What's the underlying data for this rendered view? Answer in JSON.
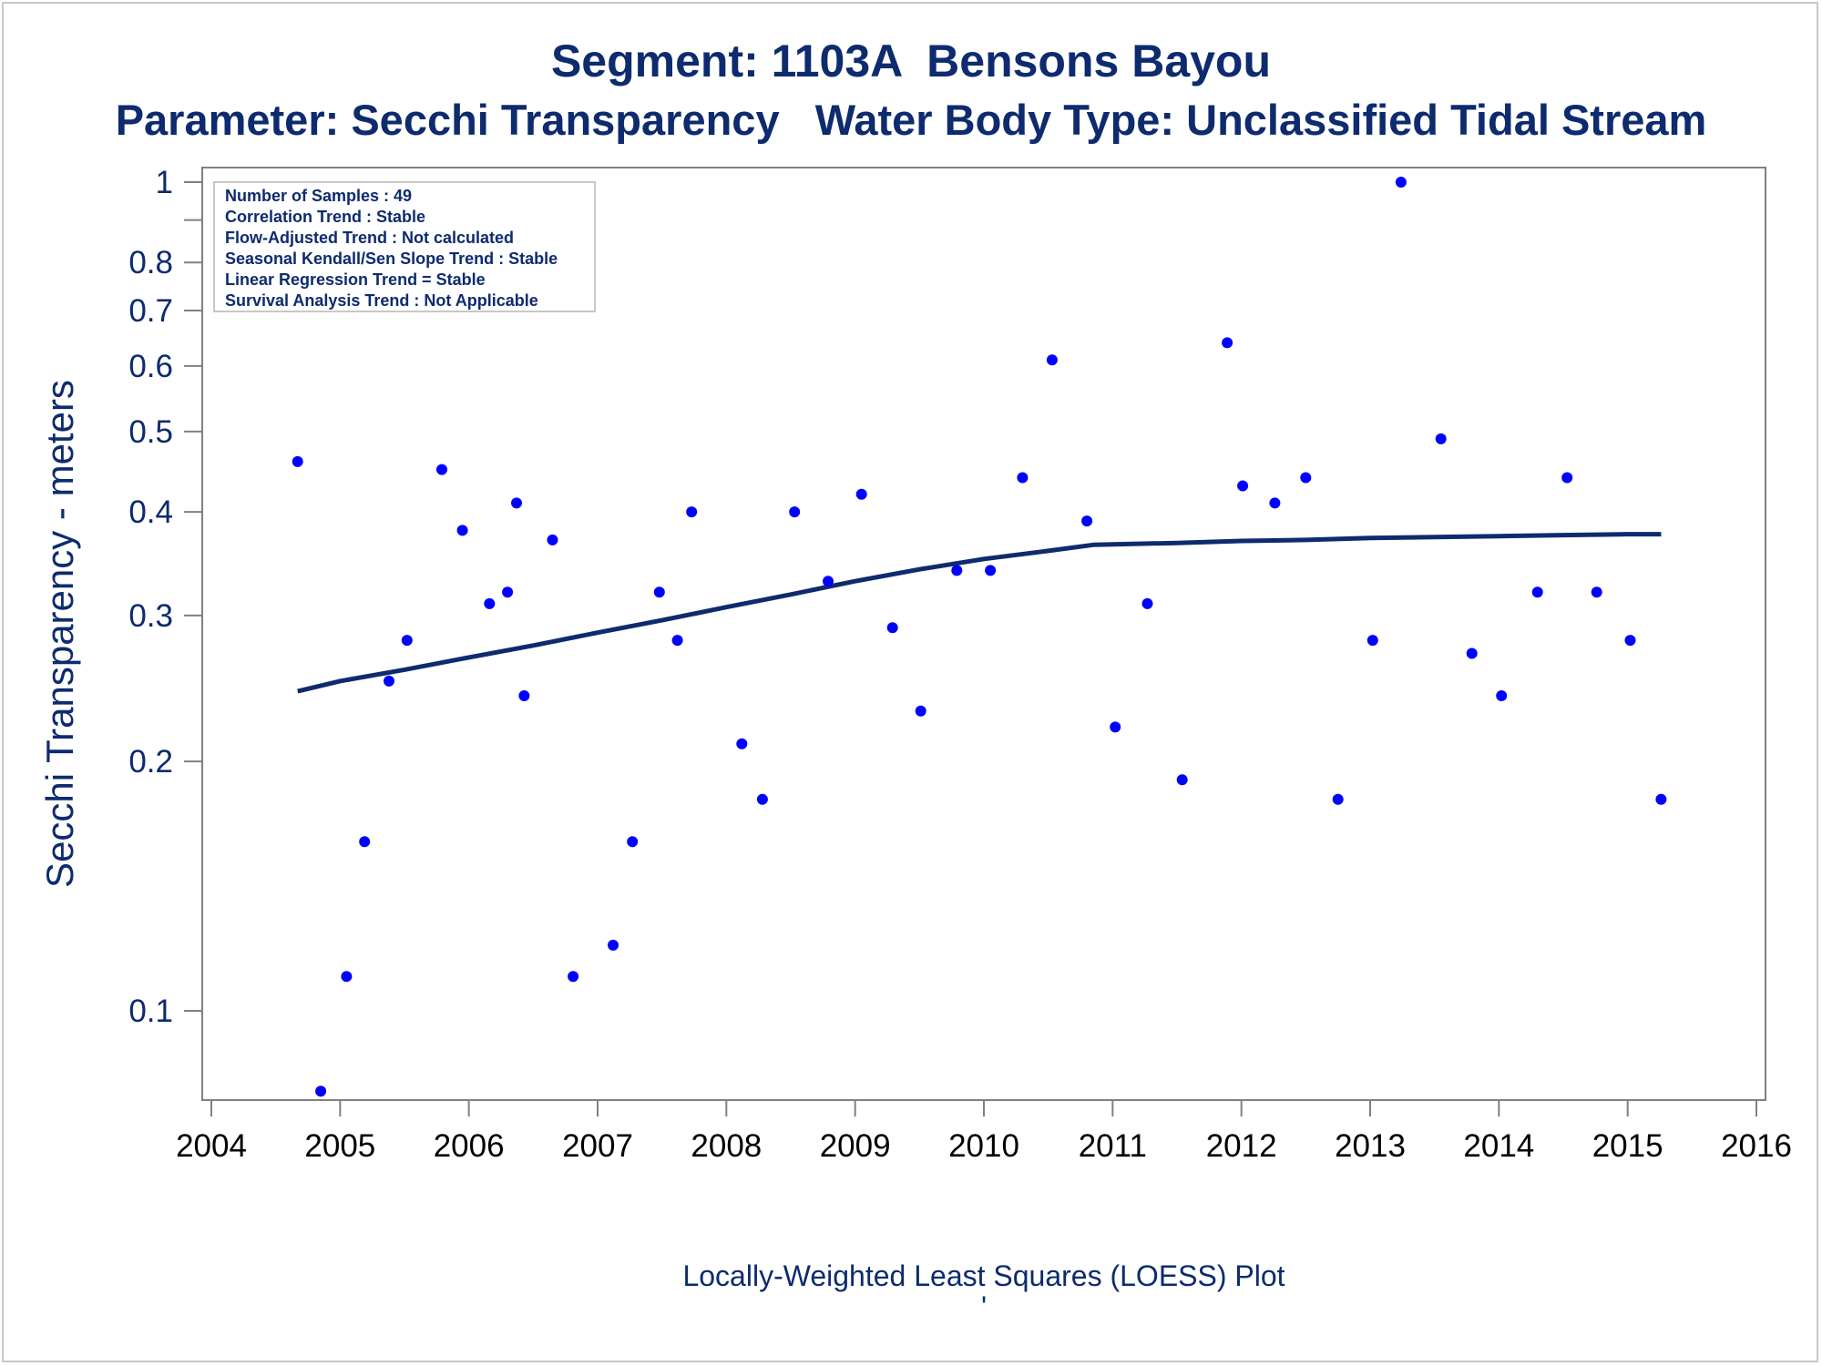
{
  "chart_data": {
    "type": "scatter",
    "title": "Segment: 1103A  Bensons Bayou",
    "subtitle": "Parameter: Secchi Transparency   Water Body Type: Unclassified Tidal Stream",
    "xlabel": "",
    "ylabel": "Secchi Transparency - meters",
    "footnote": "Locally-Weighted Least Squares (LOESS) Plot",
    "footnote_mark": "'",
    "yscale": "log",
    "xlim": [
      2004,
      2016
    ],
    "ylim": [
      0.075,
      1.05
    ],
    "x_ticks": [
      "2004",
      "2005",
      "2006",
      "2007",
      "2008",
      "2009",
      "2010",
      "2011",
      "2012",
      "2013",
      "2014",
      "2015",
      "2016"
    ],
    "y_ticks": [
      {
        "value": 1.0,
        "label": "1"
      },
      {
        "value": 0.8,
        "label": "0.8"
      },
      {
        "value": 0.7,
        "label": "0.7"
      },
      {
        "value": 0.6,
        "label": "0.6"
      },
      {
        "value": 0.5,
        "label": "0.5"
      },
      {
        "value": 0.4,
        "label": "0.4"
      },
      {
        "value": 0.3,
        "label": "0.3"
      },
      {
        "value": 0.2,
        "label": "0.2"
      },
      {
        "value": 0.1,
        "label": "0.1"
      }
    ],
    "y_minor_ticks": [
      0.9
    ],
    "grid": false,
    "legend_position": "top-left",
    "info_box": [
      "Number of Samples : 49",
      "Correlation Trend : Stable",
      "Flow-Adjusted Trend : Not calculated",
      "Seasonal Kendall/Sen Slope Trend : Stable",
      "Linear Regression Trend = Stable",
      "Survival Analysis Trend : Not Applicable"
    ],
    "colors": {
      "points": "#0000ff",
      "line": "#0d2b6e",
      "text": "#0d2b6e",
      "axis": "#808080"
    },
    "points": [
      {
        "x": 2004.67,
        "y": 0.46
      },
      {
        "x": 2004.85,
        "y": 0.08
      },
      {
        "x": 2005.05,
        "y": 0.11
      },
      {
        "x": 2005.19,
        "y": 0.16
      },
      {
        "x": 2005.38,
        "y": 0.25
      },
      {
        "x": 2005.52,
        "y": 0.28
      },
      {
        "x": 2005.79,
        "y": 0.45
      },
      {
        "x": 2005.95,
        "y": 0.38
      },
      {
        "x": 2006.16,
        "y": 0.31
      },
      {
        "x": 2006.3,
        "y": 0.32
      },
      {
        "x": 2006.37,
        "y": 0.41
      },
      {
        "x": 2006.43,
        "y": 0.24
      },
      {
        "x": 2006.65,
        "y": 0.37
      },
      {
        "x": 2006.81,
        "y": 0.11
      },
      {
        "x": 2007.12,
        "y": 0.12
      },
      {
        "x": 2007.27,
        "y": 0.16
      },
      {
        "x": 2007.48,
        "y": 0.32
      },
      {
        "x": 2007.62,
        "y": 0.28
      },
      {
        "x": 2007.73,
        "y": 0.4
      },
      {
        "x": 2008.12,
        "y": 0.21
      },
      {
        "x": 2008.28,
        "y": 0.18
      },
      {
        "x": 2008.53,
        "y": 0.4
      },
      {
        "x": 2008.79,
        "y": 0.33
      },
      {
        "x": 2009.05,
        "y": 0.42
      },
      {
        "x": 2009.29,
        "y": 0.29
      },
      {
        "x": 2009.51,
        "y": 0.23
      },
      {
        "x": 2009.79,
        "y": 0.34
      },
      {
        "x": 2010.05,
        "y": 0.34
      },
      {
        "x": 2010.3,
        "y": 0.44
      },
      {
        "x": 2010.53,
        "y": 0.61
      },
      {
        "x": 2010.8,
        "y": 0.39
      },
      {
        "x": 2011.02,
        "y": 0.22
      },
      {
        "x": 2011.27,
        "y": 0.31
      },
      {
        "x": 2011.54,
        "y": 0.19
      },
      {
        "x": 2011.89,
        "y": 0.64
      },
      {
        "x": 2012.01,
        "y": 0.43
      },
      {
        "x": 2012.26,
        "y": 0.41
      },
      {
        "x": 2012.5,
        "y": 0.44
      },
      {
        "x": 2012.75,
        "y": 0.18
      },
      {
        "x": 2013.02,
        "y": 0.28
      },
      {
        "x": 2013.24,
        "y": 1.0
      },
      {
        "x": 2013.55,
        "y": 0.49
      },
      {
        "x": 2013.79,
        "y": 0.27
      },
      {
        "x": 2014.02,
        "y": 0.24
      },
      {
        "x": 2014.3,
        "y": 0.32
      },
      {
        "x": 2014.53,
        "y": 0.44
      },
      {
        "x": 2014.76,
        "y": 0.32
      },
      {
        "x": 2015.02,
        "y": 0.28
      },
      {
        "x": 2015.26,
        "y": 0.18
      }
    ],
    "loess": {
      "x": [
        2004.67,
        2005.0,
        2005.5,
        2006.0,
        2006.5,
        2007.0,
        2007.5,
        2008.0,
        2008.5,
        2009.0,
        2009.5,
        2010.0,
        2010.5,
        2010.85,
        2011.5,
        2012.0,
        2012.5,
        2013.0,
        2013.5,
        2014.0,
        2014.5,
        2015.0,
        2015.26
      ],
      "y": [
        0.243,
        0.25,
        0.258,
        0.267,
        0.276,
        0.286,
        0.296,
        0.307,
        0.318,
        0.33,
        0.341,
        0.351,
        0.359,
        0.365,
        0.367,
        0.369,
        0.37,
        0.372,
        0.373,
        0.374,
        0.375,
        0.376,
        0.376
      ]
    }
  }
}
